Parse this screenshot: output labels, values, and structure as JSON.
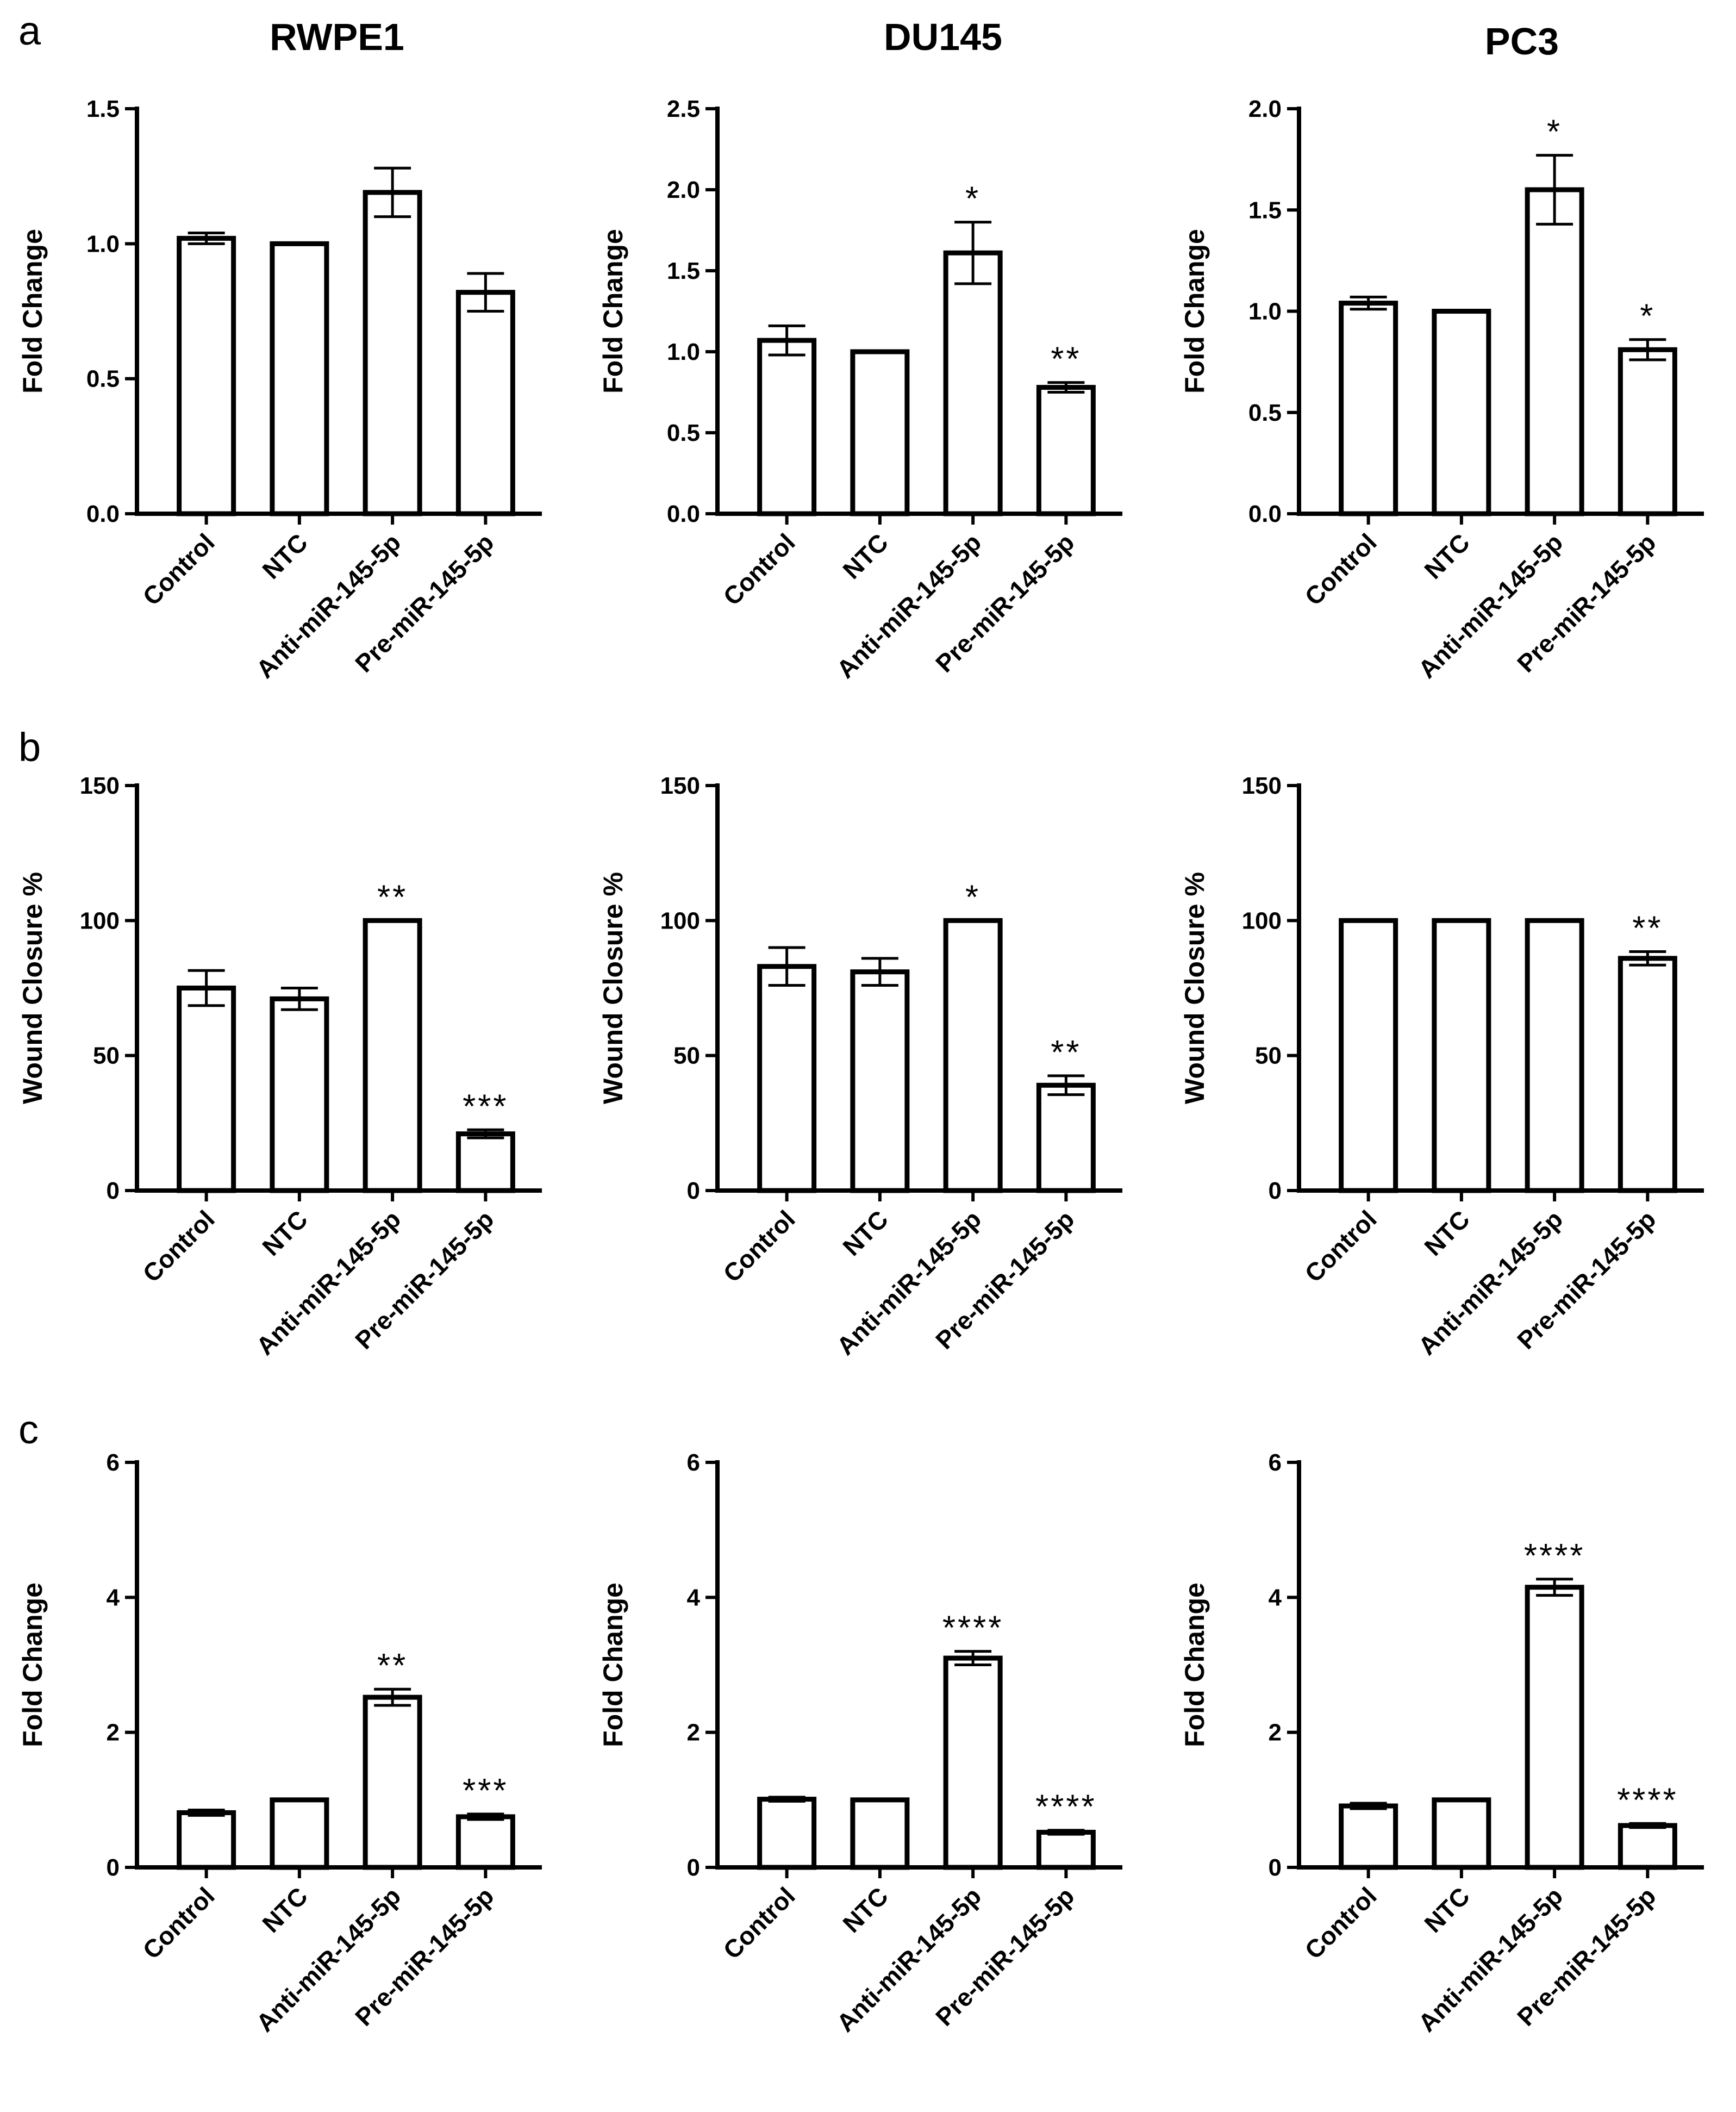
{
  "panels": {
    "a": "a",
    "b": "b",
    "c": "c"
  },
  "columns": [
    "RWPE1",
    "DU145",
    "PC3"
  ],
  "chart_data": [
    {
      "type": "bar",
      "row": "a",
      "column": "RWPE1",
      "ylabel": "Fold Change",
      "ylim": [
        0,
        1.5
      ],
      "yticks": [
        "0.0",
        "0.5",
        "1.0",
        "1.5"
      ],
      "yticks_values": [
        0,
        0.5,
        1.0,
        1.5
      ],
      "categories": [
        "Control",
        "NTC",
        "Anti-miR-145-5p",
        "Pre-miR-145-5p"
      ],
      "values": [
        1.02,
        1.0,
        1.19,
        0.82
      ],
      "errors": [
        0.02,
        0,
        0.09,
        0.07
      ],
      "significance": [
        "",
        "",
        "",
        ""
      ]
    },
    {
      "type": "bar",
      "row": "a",
      "column": "DU145",
      "ylabel": "Fold Change",
      "ylim": [
        0,
        2.5
      ],
      "yticks": [
        "0.0",
        "0.5",
        "1.0",
        "1.5",
        "2.0",
        "2.5"
      ],
      "yticks_values": [
        0,
        0.5,
        1.0,
        1.5,
        2.0,
        2.5
      ],
      "categories": [
        "Control",
        "NTC",
        "Anti-miR-145-5p",
        "Pre-miR-145-5p"
      ],
      "values": [
        1.07,
        1.0,
        1.61,
        0.78
      ],
      "errors": [
        0.09,
        0,
        0.19,
        0.03
      ],
      "significance": [
        "",
        "",
        "*",
        "**"
      ]
    },
    {
      "type": "bar",
      "row": "a",
      "column": "PC3",
      "ylabel": "Fold Change",
      "ylim": [
        0,
        2.0
      ],
      "yticks": [
        "0.0",
        "0.5",
        "1.0",
        "1.5",
        "2.0"
      ],
      "yticks_values": [
        0,
        0.5,
        1.0,
        1.5,
        2.0
      ],
      "categories": [
        "Control",
        "NTC",
        "Anti-miR-145-5p",
        "Pre-miR-145-5p"
      ],
      "values": [
        1.04,
        1.0,
        1.6,
        0.81
      ],
      "errors": [
        0.03,
        0,
        0.17,
        0.05
      ],
      "significance": [
        "",
        "",
        "*",
        "*"
      ]
    },
    {
      "type": "bar",
      "row": "b",
      "column": "RWPE1",
      "ylabel": "Wound Closure %",
      "ylim": [
        0,
        150
      ],
      "yticks": [
        "0",
        "50",
        "100",
        "150"
      ],
      "yticks_values": [
        0,
        50,
        100,
        150
      ],
      "categories": [
        "Control",
        "NTC",
        "Anti-miR-145-5p",
        "Pre-miR-145-5p"
      ],
      "values": [
        75,
        71,
        100,
        21
      ],
      "errors": [
        6.5,
        4,
        0,
        1.5
      ],
      "significance": [
        "",
        "",
        "**",
        "***"
      ]
    },
    {
      "type": "bar",
      "row": "b",
      "column": "DU145",
      "ylabel": "Wound Closure %",
      "ylim": [
        0,
        150
      ],
      "yticks": [
        "0",
        "50",
        "100",
        "150"
      ],
      "yticks_values": [
        0,
        50,
        100,
        150
      ],
      "categories": [
        "Control",
        "NTC",
        "Anti-miR-145-5p",
        "Pre-miR-145-5p"
      ],
      "values": [
        83,
        81,
        100,
        39
      ],
      "errors": [
        7,
        5,
        0,
        3.5
      ],
      "significance": [
        "",
        "",
        "*",
        "**"
      ]
    },
    {
      "type": "bar",
      "row": "b",
      "column": "PC3",
      "ylabel": "Wound Closure %",
      "ylim": [
        0,
        150
      ],
      "yticks": [
        "0",
        "50",
        "100",
        "150"
      ],
      "yticks_values": [
        0,
        50,
        100,
        150
      ],
      "categories": [
        "Control",
        "NTC",
        "Anti-miR-145-5p",
        "Pre-miR-145-5p"
      ],
      "values": [
        100,
        100,
        100,
        86
      ],
      "errors": [
        0,
        0,
        0,
        2.5
      ],
      "significance": [
        "",
        "",
        "",
        "**"
      ]
    },
    {
      "type": "bar",
      "row": "c",
      "column": "RWPE1",
      "ylabel": "Fold Change",
      "ylim": [
        0,
        6
      ],
      "yticks": [
        "0",
        "2",
        "4",
        "6"
      ],
      "yticks_values": [
        0,
        2,
        4,
        6
      ],
      "categories": [
        "Control",
        "NTC",
        "Anti-miR-145-5p",
        "Pre-miR-145-5p"
      ],
      "values": [
        0.81,
        1.0,
        2.52,
        0.75
      ],
      "errors": [
        0.04,
        0,
        0.12,
        0.04
      ],
      "significance": [
        "",
        "",
        "**",
        "***"
      ]
    },
    {
      "type": "bar",
      "row": "c",
      "column": "DU145",
      "ylabel": "Fold Change",
      "ylim": [
        0,
        6
      ],
      "yticks": [
        "0",
        "2",
        "4",
        "6"
      ],
      "yticks_values": [
        0,
        2,
        4,
        6
      ],
      "categories": [
        "Control",
        "NTC",
        "Anti-miR-145-5p",
        "Pre-miR-145-5p"
      ],
      "values": [
        1.01,
        1.0,
        3.1,
        0.52
      ],
      "errors": [
        0.03,
        0,
        0.1,
        0.03
      ],
      "significance": [
        "",
        "",
        "****",
        "****"
      ]
    },
    {
      "type": "bar",
      "row": "c",
      "column": "PC3",
      "ylabel": "Fold Change",
      "ylim": [
        0,
        6
      ],
      "yticks": [
        "0",
        "2",
        "4",
        "6"
      ],
      "yticks_values": [
        0,
        2,
        4,
        6
      ],
      "categories": [
        "Control",
        "NTC",
        "Anti-miR-145-5p",
        "Pre-miR-145-5p"
      ],
      "values": [
        0.91,
        1.0,
        4.15,
        0.62
      ],
      "errors": [
        0.04,
        0,
        0.12,
        0.03
      ],
      "significance": [
        "",
        "",
        "****",
        "****"
      ]
    }
  ]
}
